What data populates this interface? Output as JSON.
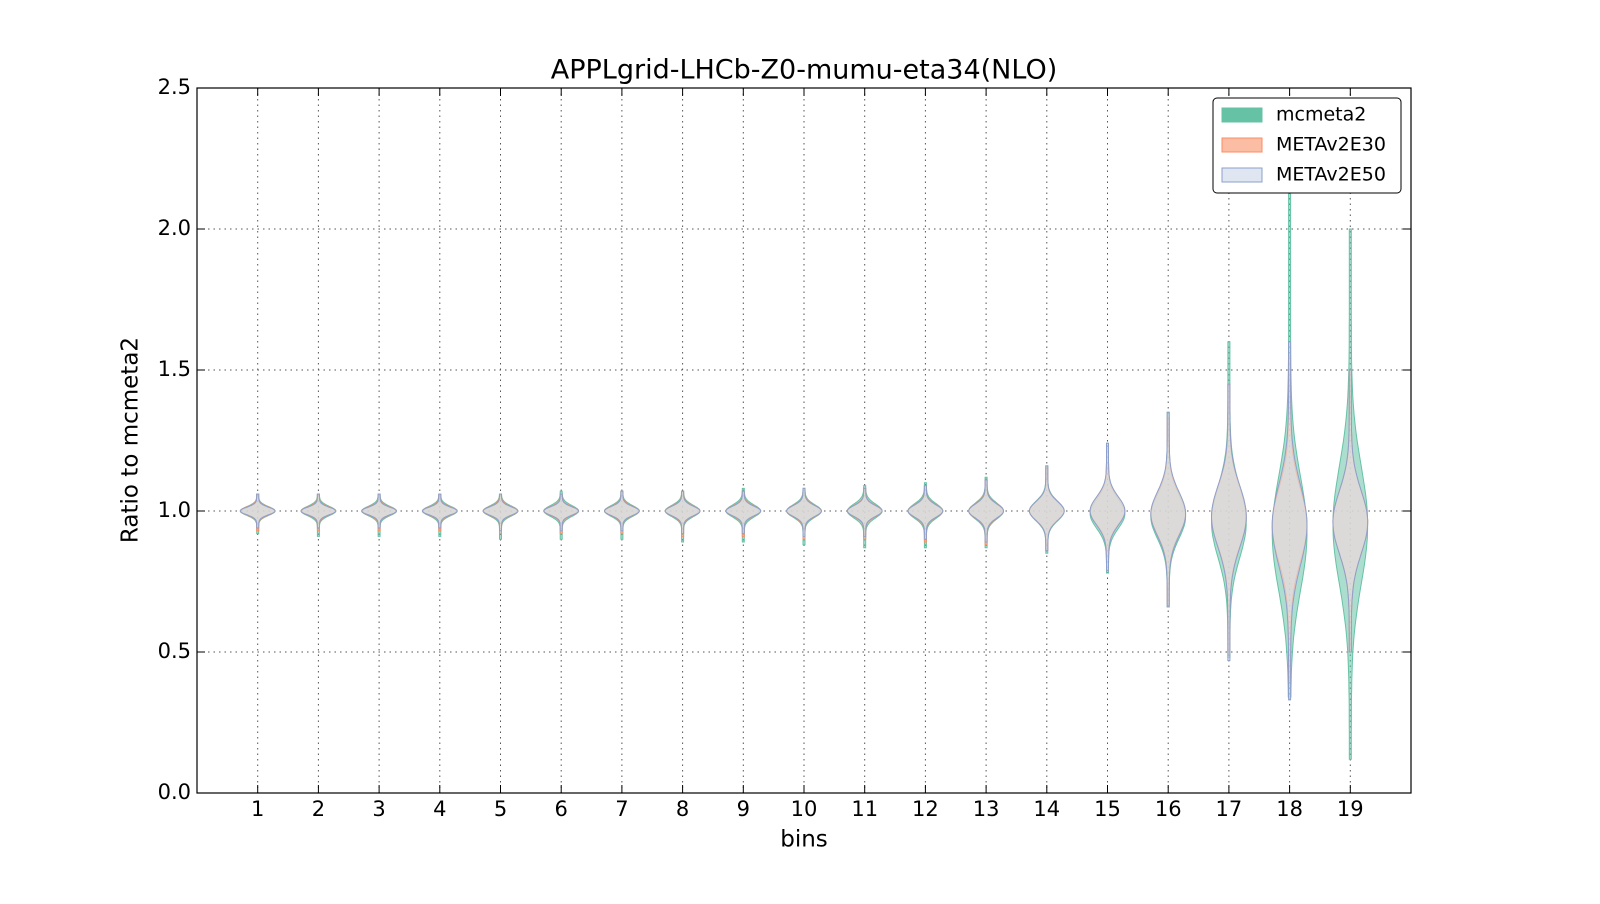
{
  "chart_data": {
    "type": "violin",
    "title": "APPLgrid-LHCb-Z0-mumu-eta34(NLO)",
    "xlabel": "bins",
    "ylabel": "Ratio to mcmeta2",
    "x": [
      1,
      2,
      3,
      4,
      5,
      6,
      7,
      8,
      9,
      10,
      11,
      12,
      13,
      14,
      15,
      16,
      17,
      18,
      19
    ],
    "xlim": [
      0,
      20
    ],
    "xticks": [
      1,
      2,
      3,
      4,
      5,
      6,
      7,
      8,
      9,
      10,
      11,
      12,
      13,
      14,
      15,
      16,
      17,
      18,
      19
    ],
    "ylim": [
      0,
      2.5
    ],
    "yticks": [
      {
        "value": 0,
        "label": "0.0"
      },
      0.5,
      {
        "value": 1,
        "label": "1.0"
      },
      1.5,
      {
        "value": 2,
        "label": "2.0"
      },
      2.5
    ],
    "grid": true,
    "legend": "upper right",
    "series": [
      {
        "name": "mcmeta2",
        "color": "#66c2a5",
        "edge": "#66c2a5",
        "min": [
          0.92,
          0.91,
          0.91,
          0.91,
          0.9,
          0.9,
          0.9,
          0.89,
          0.89,
          0.88,
          0.87,
          0.87,
          0.87,
          0.85,
          0.78,
          0.66,
          0.48,
          0.34,
          0.12
        ],
        "center": [
          1,
          1,
          1,
          1,
          1,
          1,
          1,
          1,
          1,
          1,
          1,
          1,
          1,
          1,
          0.99,
          0.98,
          0.96,
          0.92,
          0.95
        ],
        "max": [
          1.06,
          1.06,
          1.06,
          1.06,
          1.06,
          1.07,
          1.07,
          1.07,
          1.08,
          1.08,
          1.09,
          1.1,
          1.12,
          1.16,
          1.24,
          1.35,
          1.6,
          2.15,
          2.0
        ]
      },
      {
        "name": "METAv2E30",
        "color": "#fcbda5",
        "edge": "#fc8d62",
        "min": [
          0.93,
          0.93,
          0.93,
          0.93,
          0.92,
          0.92,
          0.92,
          0.91,
          0.91,
          0.9,
          0.9,
          0.89,
          0.88,
          0.86,
          0.79,
          0.67,
          0.5,
          0.4,
          0.5
        ],
        "center": [
          1,
          1,
          1,
          1,
          1,
          1,
          1,
          1,
          1,
          1,
          1,
          1,
          1,
          1,
          1,
          0.99,
          0.98,
          0.95,
          0.96
        ],
        "max": [
          1.06,
          1.06,
          1.06,
          1.06,
          1.06,
          1.06,
          1.07,
          1.07,
          1.07,
          1.08,
          1.08,
          1.09,
          1.11,
          1.15,
          1.22,
          1.33,
          1.45,
          1.55,
          1.5
        ]
      },
      {
        "name": "METAv2E50",
        "color": "#dfe6f2",
        "edge": "#8da0cb",
        "min": [
          0.94,
          0.94,
          0.94,
          0.94,
          0.93,
          0.93,
          0.93,
          0.92,
          0.92,
          0.91,
          0.91,
          0.9,
          0.89,
          0.86,
          0.79,
          0.66,
          0.47,
          0.33,
          0.5
        ],
        "center": [
          1,
          1,
          1,
          1,
          1,
          1,
          1,
          1,
          1,
          1,
          1,
          1,
          1,
          1,
          1,
          0.99,
          0.98,
          0.95,
          0.96
        ],
        "max": [
          1.06,
          1.06,
          1.06,
          1.06,
          1.06,
          1.06,
          1.07,
          1.07,
          1.07,
          1.08,
          1.08,
          1.09,
          1.11,
          1.16,
          1.24,
          1.35,
          1.45,
          1.6,
          1.5
        ]
      }
    ]
  }
}
